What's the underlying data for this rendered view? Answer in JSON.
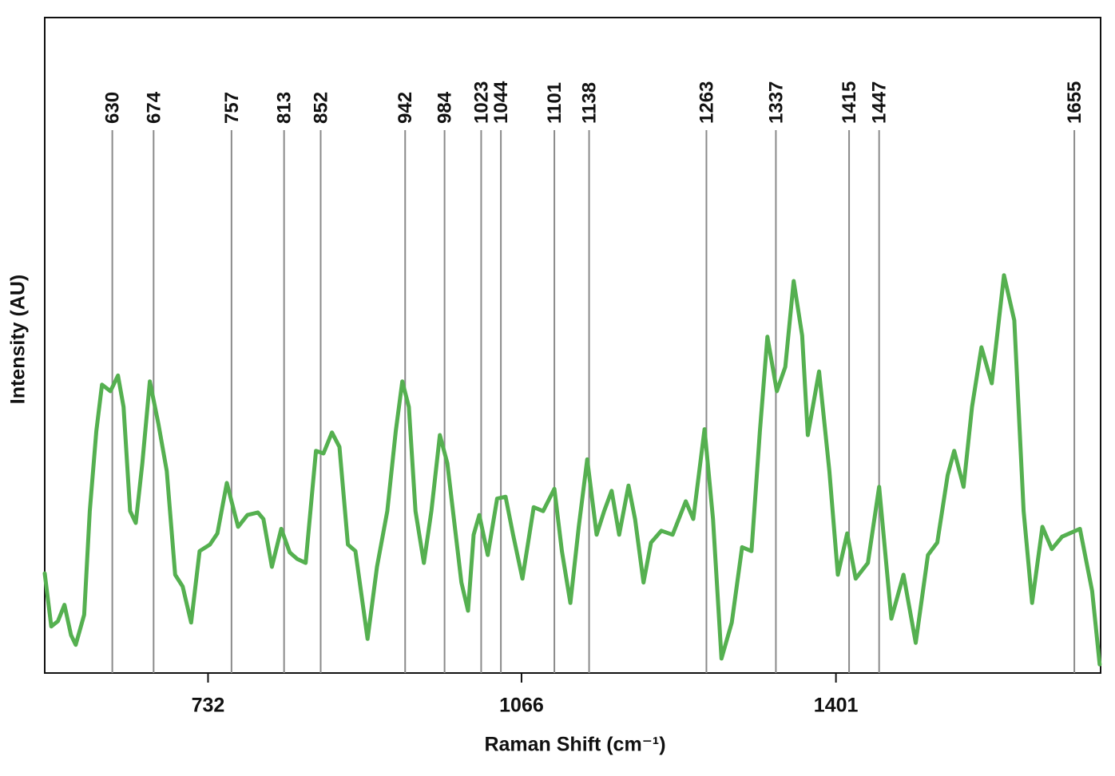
{
  "chart_data": {
    "type": "line",
    "xlabel": "Raman Shift (cm⁻¹)",
    "ylabel": "Intensity (AU)",
    "color": "#55b050",
    "xlim": [
      558,
      1683
    ],
    "xticks": [
      732,
      1066,
      1401
    ],
    "ylim": [
      0,
      100
    ],
    "peaks": [
      630,
      674,
      757,
      813,
      852,
      942,
      984,
      1023,
      1044,
      1101,
      1138,
      1263,
      1337,
      1415,
      1447,
      1655
    ],
    "x": [
      558,
      565,
      572,
      579,
      586,
      591,
      600,
      606,
      613,
      619,
      628,
      636,
      642,
      649,
      655,
      662,
      670,
      679,
      688,
      697,
      705,
      714,
      723,
      734,
      742,
      752,
      764,
      774,
      785,
      791,
      800,
      810,
      819,
      827,
      836,
      847,
      855,
      864,
      872,
      881,
      889,
      902,
      912,
      923,
      932,
      939,
      946,
      953,
      962,
      970,
      979,
      987,
      994,
      1002,
      1009,
      1015,
      1021,
      1030,
      1040,
      1049,
      1057,
      1067,
      1079,
      1089,
      1101,
      1109,
      1118,
      1127,
      1136,
      1146,
      1154,
      1162,
      1170,
      1180,
      1187,
      1196,
      1204,
      1215,
      1227,
      1241,
      1249,
      1261,
      1270,
      1279,
      1290,
      1301,
      1311,
      1320,
      1328,
      1338,
      1347,
      1356,
      1365,
      1371,
      1383,
      1394,
      1403,
      1413,
      1422,
      1435,
      1447,
      1460,
      1473,
      1486,
      1499,
      1509,
      1520,
      1527,
      1537,
      1546,
      1556,
      1567,
      1580,
      1591,
      1601,
      1610,
      1621,
      1631,
      1642,
      1661,
      1674,
      1682
    ],
    "values": [
      15.2,
      7.1,
      7.9,
      10.4,
      5.8,
      4.3,
      8.9,
      24.7,
      36.9,
      44.0,
      43.0,
      45.4,
      40.6,
      24.7,
      22.9,
      32.0,
      44.5,
      38.1,
      30.8,
      15.0,
      13.2,
      7.7,
      18.6,
      19.6,
      21.3,
      29.0,
      22.3,
      24.1,
      24.5,
      23.5,
      16.2,
      22.0,
      18.4,
      17.4,
      16.8,
      33.9,
      33.5,
      36.7,
      34.5,
      19.6,
      18.6,
      5.2,
      16.2,
      24.7,
      36.9,
      44.5,
      40.6,
      24.7,
      16.8,
      24.7,
      36.3,
      32.0,
      23.5,
      13.8,
      9.5,
      21.1,
      24.1,
      18.0,
      26.6,
      26.9,
      21.1,
      14.4,
      25.3,
      24.7,
      28.1,
      18.6,
      10.7,
      22.3,
      32.6,
      21.1,
      24.7,
      27.8,
      21.1,
      28.6,
      23.5,
      13.8,
      19.9,
      21.7,
      21.1,
      26.2,
      23.5,
      37.2,
      23.5,
      2.2,
      7.7,
      19.2,
      18.6,
      36.9,
      51.3,
      43.0,
      46.7,
      59.8,
      51.5,
      36.3,
      46.0,
      30.8,
      15.0,
      21.3,
      14.4,
      16.8,
      28.4,
      8.3,
      15.0,
      4.6,
      18.0,
      19.9,
      30.2,
      33.9,
      28.4,
      40.6,
      49.7,
      44.2,
      60.7,
      53.8,
      24.7,
      10.7,
      22.3,
      18.9,
      20.8,
      22.0,
      12.5,
      1.3
    ]
  }
}
